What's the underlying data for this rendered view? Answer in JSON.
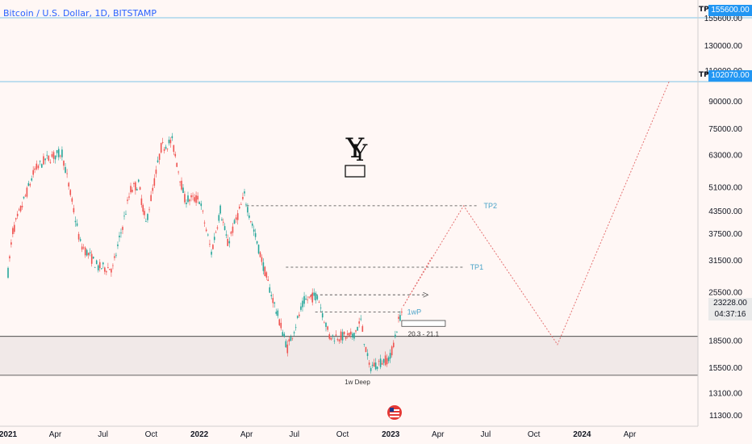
{
  "header": {
    "title": "Bitcoin / U.S. Dollar, 1D, BITSTAMP"
  },
  "price_tags": {
    "tp1_value": "155600.00",
    "tp2_value": "102070.00",
    "tp_label": "TP",
    "current_price": "23228.00",
    "countdown": "04:37:16",
    "current_color": "#26a69a",
    "tag_color": "#2196f3"
  },
  "chart_data": {
    "type": "line",
    "scale": "log",
    "y_axis": {
      "ticks": [
        "155600.00",
        "130000.00",
        "110000.00",
        "90000.00",
        "75000.00",
        "63000.00",
        "51000.00",
        "43500.00",
        "37500.00",
        "31500.00",
        "25500.00",
        "18500.00",
        "15500.00",
        "13100.00",
        "11300.00"
      ],
      "tick_values": [
        155600,
        130000,
        110000,
        90000,
        75000,
        63000,
        51000,
        43500,
        37500,
        31500,
        25500,
        18500,
        15500,
        13100,
        11300
      ],
      "range": [
        10500,
        175000
      ]
    },
    "x_axis": {
      "ticks": [
        "2021",
        "Apr",
        "Jul",
        "Oct",
        "2022",
        "Apr",
        "Jul",
        "Oct",
        "2023",
        "Apr",
        "Jul",
        "Oct",
        "2024",
        "Apr"
      ],
      "bold_ticks": [
        "2021",
        "2022",
        "2023",
        "2024"
      ]
    },
    "price_path": [
      [
        "2021-01-01",
        29000
      ],
      [
        "2021-01-10",
        38000
      ],
      [
        "2021-02-21",
        57000
      ],
      [
        "2021-03-13",
        61000
      ],
      [
        "2021-04-14",
        64000
      ],
      [
        "2021-05-19",
        35000
      ],
      [
        "2021-06-22",
        30000
      ],
      [
        "2021-07-20",
        29800
      ],
      [
        "2021-08-23",
        50000
      ],
      [
        "2021-09-07",
        52000
      ],
      [
        "2021-09-21",
        40000
      ],
      [
        "2021-10-20",
        66000
      ],
      [
        "2021-11-10",
        69000
      ],
      [
        "2021-12-04",
        47000
      ],
      [
        "2022-01-01",
        47000
      ],
      [
        "2022-01-24",
        33000
      ],
      [
        "2022-02-10",
        44000
      ],
      [
        "2022-02-24",
        35000
      ],
      [
        "2022-03-28",
        48000
      ],
      [
        "2022-05-12",
        27000
      ],
      [
        "2022-06-18",
        17600
      ],
      [
        "2022-07-20",
        24000
      ],
      [
        "2022-08-14",
        25000
      ],
      [
        "2022-09-06",
        19000
      ],
      [
        "2022-10-20",
        19000
      ],
      [
        "2022-11-05",
        21000
      ],
      [
        "2022-11-21",
        15500
      ],
      [
        "2022-12-31",
        16500
      ],
      [
        "2023-01-16",
        21000
      ],
      [
        "2023-01-25",
        23228
      ]
    ],
    "annotations": {
      "support_zone": {
        "top": 19000,
        "bottom": 14700,
        "label": "1w Deep"
      },
      "levels": [
        {
          "label": "TP2",
          "value": 45000,
          "from": "2022-04-01",
          "to": "2023-06-15"
        },
        {
          "label": "TP1",
          "value": 30000,
          "from": "2022-06-15",
          "to": "2023-05-20"
        },
        {
          "label": "",
          "value": 25000,
          "from": "2022-08-01",
          "to": "2023-03-10"
        },
        {
          "label": "1wP",
          "value": 22300,
          "from": "2022-08-10",
          "to": "2023-01-20"
        }
      ],
      "range_box": {
        "label": "20.3 - 21.1",
        "low": 20300,
        "high": 21100
      },
      "projection": [
        [
          "2023-01-25",
          23228
        ],
        [
          "2023-05-20",
          45000
        ],
        [
          "2023-11-15",
          18000
        ],
        [
          "2024-06-15",
          102070
        ]
      ],
      "projection_alt": [
        [
          "2023-01-25",
          23228
        ],
        [
          "2023-03-20",
          32000
        ]
      ]
    }
  }
}
